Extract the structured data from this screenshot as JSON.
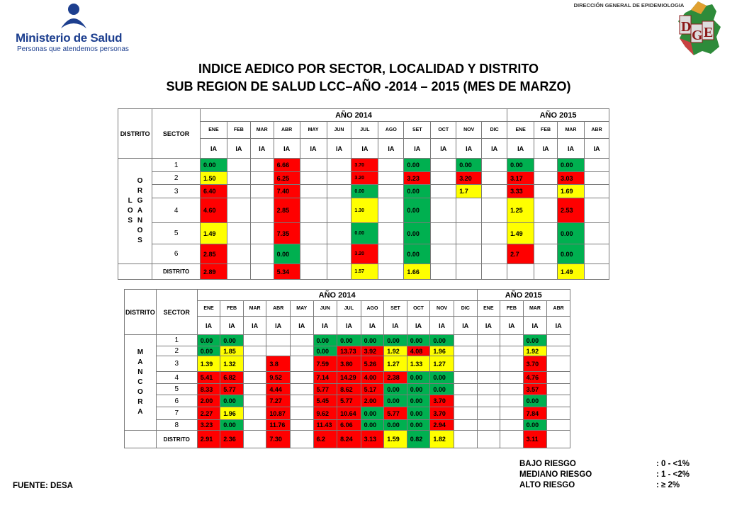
{
  "header": {
    "ministry_name": "Ministerio de Salud",
    "ministry_tagline": "Personas que atendemos personas",
    "dge_text": "DIRECCIÓN GENERAL DE EPIDEMIOLOGIA",
    "dge_logo": "DGE",
    "title_line1": "INDICE AEDICO POR SECTOR, LOCALIDAD Y DISTRITO",
    "title_line2": "SUB REGION DE SALUD LCC–AÑO -2014 – 2015 (MES DE MARZO)"
  },
  "colors": {
    "bajo": "#00b050",
    "mediano": "#ffff00",
    "alto": "#ff0000"
  },
  "table_header": {
    "distrito": "DISTRITO",
    "sector": "SECTOR",
    "year1": "AÑO 2014",
    "year2": "AÑO 2015",
    "months": [
      "ENE",
      "FEB",
      "MAR",
      "ABR",
      "MAY",
      "JUN",
      "JUL",
      "AGO",
      "SET",
      "OCT",
      "NOV",
      "DIC",
      "ENE",
      "FEB",
      "MAR",
      "ABR"
    ],
    "ia": "IA"
  },
  "tables": [
    {
      "district_label": [
        "L",
        "O",
        "S"
      ],
      "district_label2": [
        "O",
        "R",
        "G",
        "A",
        "N",
        "O",
        "S"
      ],
      "total_label": "DISTRITO",
      "rows": [
        {
          "sector": "1",
          "cells": [
            [
              "0.00",
              "g"
            ],
            null,
            null,
            [
              "6.66",
              "r"
            ],
            null,
            null,
            [
              "3.70",
              "r"
            ],
            null,
            [
              "0.00",
              "g"
            ],
            null,
            [
              "0.00",
              "g"
            ],
            null,
            [
              "0.00",
              "g"
            ],
            null,
            [
              "0.00",
              "g"
            ],
            null
          ]
        },
        {
          "sector": "2",
          "cells": [
            [
              "1.50",
              "y"
            ],
            null,
            null,
            [
              "6.25",
              "r"
            ],
            null,
            null,
            [
              "3.20",
              "r"
            ],
            null,
            [
              "3.23",
              "r"
            ],
            null,
            [
              "3.20",
              "r"
            ],
            null,
            [
              "3.17",
              "r"
            ],
            null,
            [
              "3.03",
              "r"
            ],
            null
          ]
        },
        {
          "sector": "3",
          "cells": [
            [
              "6.40",
              "r"
            ],
            null,
            null,
            [
              "7.40",
              "r"
            ],
            null,
            null,
            [
              "0.00",
              "g"
            ],
            null,
            [
              "0.00",
              "g"
            ],
            null,
            [
              "1.7",
              "y"
            ],
            null,
            [
              "3.33",
              "r"
            ],
            null,
            [
              "1.69",
              "y"
            ],
            null
          ]
        },
        {
          "sector": "4",
          "cells": [
            [
              "4.60",
              "r"
            ],
            null,
            null,
            [
              "2.85",
              "r"
            ],
            null,
            null,
            [
              "1.30",
              "y"
            ],
            null,
            [
              "0.00",
              "g"
            ],
            null,
            null,
            null,
            [
              "1.25",
              "y"
            ],
            null,
            [
              "2.53",
              "r"
            ],
            null
          ]
        },
        {
          "sector": "5",
          "cells": [
            [
              "1.49",
              "y"
            ],
            null,
            null,
            [
              "7.35",
              "r"
            ],
            null,
            null,
            [
              "0.00",
              "g"
            ],
            null,
            [
              "0.00",
              "g"
            ],
            null,
            null,
            null,
            [
              "1.49",
              "y"
            ],
            null,
            [
              "0.00",
              "g"
            ],
            null
          ]
        },
        {
          "sector": "6",
          "cells": [
            [
              "2.85",
              "r"
            ],
            null,
            null,
            [
              "0.00",
              "g"
            ],
            null,
            null,
            [
              "3.20",
              "r"
            ],
            null,
            [
              "0.00",
              "g"
            ],
            null,
            null,
            null,
            [
              "2.7",
              "r"
            ],
            null,
            [
              "0.00",
              "g"
            ],
            null
          ]
        }
      ],
      "total": [
        [
          "2.89",
          "r"
        ],
        null,
        null,
        [
          "5.34",
          "r"
        ],
        null,
        null,
        [
          "1.57",
          "y"
        ],
        null,
        [
          "1.66",
          "y"
        ],
        null,
        null,
        null,
        null,
        null,
        [
          "1.49",
          "y"
        ],
        null
      ]
    },
    {
      "district_label": [
        "M",
        "A",
        "N",
        "C",
        "O",
        "R",
        "A"
      ],
      "total_label": "DISTRITO",
      "rows": [
        {
          "sector": "1",
          "cells": [
            [
              "0.00",
              "g"
            ],
            [
              "0.00",
              "g"
            ],
            null,
            null,
            null,
            [
              "0.00",
              "g"
            ],
            [
              "0.00",
              "g"
            ],
            [
              "0.00",
              "g"
            ],
            [
              "0.00",
              "g"
            ],
            [
              "0.00",
              "g"
            ],
            [
              "0.00",
              "g"
            ],
            null,
            null,
            null,
            [
              "0.00",
              "g"
            ],
            null
          ]
        },
        {
          "sector": "2",
          "cells": [
            [
              "0.00",
              "g"
            ],
            [
              "1.85",
              "y"
            ],
            null,
            null,
            null,
            [
              "0.00",
              "g"
            ],
            [
              "13.73",
              "r"
            ],
            [
              "3.92",
              "r"
            ],
            [
              "1.92",
              "y"
            ],
            [
              "4.08",
              "r"
            ],
            [
              "1.96",
              "y"
            ],
            null,
            null,
            null,
            [
              "1.92",
              "y"
            ],
            null
          ]
        },
        {
          "sector": "3",
          "cells": [
            [
              "1.39",
              "y"
            ],
            [
              "1.32",
              "y"
            ],
            null,
            [
              "3.8",
              "r"
            ],
            null,
            [
              "7.59",
              "r"
            ],
            [
              "3.80",
              "r"
            ],
            [
              "5.26",
              "r"
            ],
            [
              "1.27",
              "y"
            ],
            [
              "1.33",
              "y"
            ],
            [
              "1.27",
              "y"
            ],
            null,
            null,
            null,
            [
              "3.70",
              "r"
            ],
            null
          ]
        },
        {
          "sector": "4",
          "cells": [
            [
              "5.41",
              "r"
            ],
            [
              "6.82",
              "r"
            ],
            null,
            [
              "9.52",
              "r"
            ],
            null,
            [
              "7.14",
              "r"
            ],
            [
              "14.29",
              "r"
            ],
            [
              "4.00",
              "r"
            ],
            [
              "2.38",
              "r"
            ],
            [
              "0.00",
              "g"
            ],
            [
              "0.00",
              "g"
            ],
            null,
            null,
            null,
            [
              "4.76",
              "r"
            ],
            null
          ]
        },
        {
          "sector": "5",
          "cells": [
            [
              "8.33",
              "r"
            ],
            [
              "5.77",
              "r"
            ],
            null,
            [
              "4.44",
              "r"
            ],
            null,
            [
              "5.77",
              "r"
            ],
            [
              "8.62",
              "r"
            ],
            [
              "5.17",
              "r"
            ],
            [
              "0.00",
              "g"
            ],
            [
              "0.00",
              "g"
            ],
            [
              "0.00",
              "g"
            ],
            null,
            null,
            null,
            [
              "3.57",
              "r"
            ],
            null
          ]
        },
        {
          "sector": "6",
          "cells": [
            [
              "2.00",
              "r"
            ],
            [
              "0.00",
              "g"
            ],
            null,
            [
              "7.27",
              "r"
            ],
            null,
            [
              "5.45",
              "r"
            ],
            [
              "5.77",
              "r"
            ],
            [
              "2.00",
              "r"
            ],
            [
              "0.00",
              "g"
            ],
            [
              "0.00",
              "g"
            ],
            [
              "3.70",
              "r"
            ],
            null,
            null,
            null,
            [
              "0.00",
              "g"
            ],
            null
          ]
        },
        {
          "sector": "7",
          "cells": [
            [
              "2.27",
              "r"
            ],
            [
              "1.96",
              "y"
            ],
            null,
            [
              "10.87",
              "r"
            ],
            null,
            [
              "9.62",
              "r"
            ],
            [
              "10.64",
              "r"
            ],
            [
              "0.00",
              "g"
            ],
            [
              "5.77",
              "r"
            ],
            [
              "0.00",
              "g"
            ],
            [
              "3.70",
              "r"
            ],
            null,
            null,
            null,
            [
              "7.84",
              "r"
            ],
            null
          ]
        },
        {
          "sector": "8",
          "cells": [
            [
              "3.23",
              "r"
            ],
            [
              "0.00",
              "g"
            ],
            null,
            [
              "11.76",
              "r"
            ],
            null,
            [
              "11.43",
              "r"
            ],
            [
              "6.06",
              "r"
            ],
            [
              "0.00",
              "g"
            ],
            [
              "0.00",
              "g"
            ],
            [
              "0.00",
              "g"
            ],
            [
              "2.94",
              "r"
            ],
            null,
            null,
            null,
            [
              "0.00",
              "g"
            ],
            null
          ]
        }
      ],
      "total": [
        [
          "2.91",
          "r"
        ],
        [
          "2.36",
          "r"
        ],
        null,
        [
          "7.30",
          "r"
        ],
        null,
        [
          "6.2",
          "r"
        ],
        [
          "8.24",
          "r"
        ],
        [
          "3.13",
          "r"
        ],
        [
          "1.59",
          "y"
        ],
        [
          "0.82",
          "g"
        ],
        [
          "1.82",
          "y"
        ],
        null,
        null,
        null,
        [
          "3.11",
          "r"
        ],
        null
      ]
    }
  ],
  "legend": [
    {
      "label": "BAJO RIESGO",
      "range": ": 0 - <1%"
    },
    {
      "label": "MEDIANO RIESGO",
      "range": ": 1 - <2%"
    },
    {
      "label": "ALTO RIESGO",
      "range": ": ≥ 2%"
    }
  ],
  "source": "FUENTE: DESA"
}
